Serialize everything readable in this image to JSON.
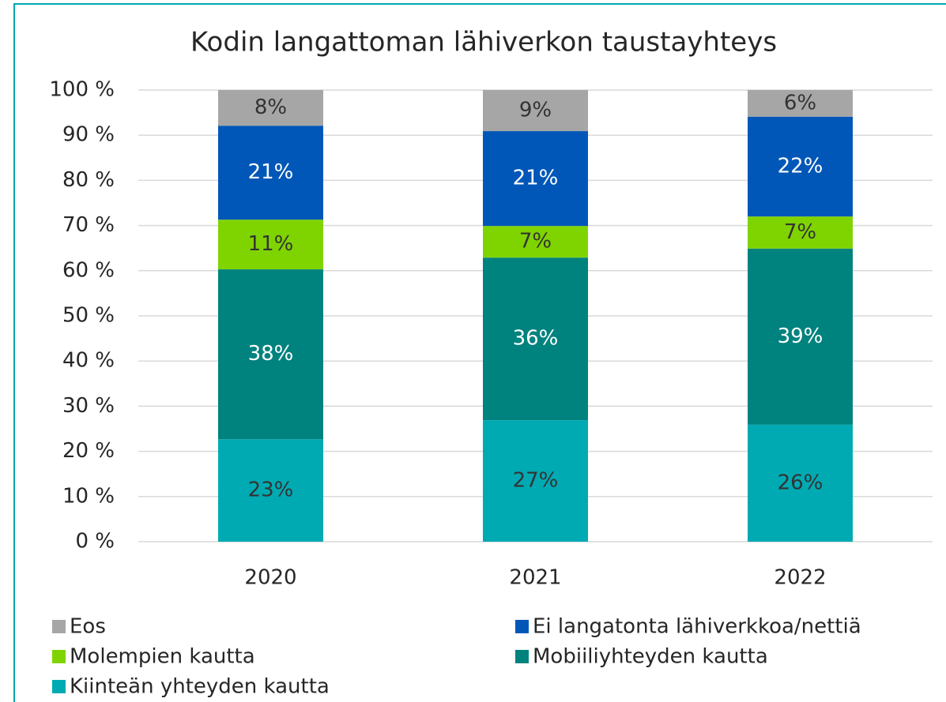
{
  "chart_data": {
    "type": "stacked_bar",
    "title": "Kodin langattoman lähiverkon taustayhteys",
    "categories": [
      "2020",
      "2021",
      "2022"
    ],
    "series": [
      {
        "name": "Kiinteän yhteyden kautta",
        "color": "#00aab3",
        "label_color": "#333333",
        "values": [
          22.7,
          26.9,
          25.9
        ],
        "value_labels": [
          "23%",
          "27%",
          "26%"
        ]
      },
      {
        "name": "Mobiiliyhteyden kautta",
        "color": "#00827e",
        "label_color": "#ffffff",
        "values": [
          37.6,
          36.0,
          39.0
        ],
        "value_labels": [
          "38%",
          "36%",
          "39%"
        ]
      },
      {
        "name": "Molempien kautta",
        "color": "#7fd400",
        "label_color": "#333333",
        "values": [
          11.0,
          7.0,
          7.1
        ],
        "value_labels": [
          "11%",
          "7%",
          "7%"
        ]
      },
      {
        "name": "Ei langatonta lähiverkkoa/nettiä",
        "color": "#0057b8",
        "label_color": "#ffffff",
        "values": [
          20.8,
          21.0,
          22.1
        ],
        "value_labels": [
          "21%",
          "21%",
          "22%"
        ]
      },
      {
        "name": "Eos",
        "color": "#a6a6a6",
        "label_color": "#333333",
        "values": [
          7.9,
          9.1,
          5.9
        ],
        "value_labels": [
          "8%",
          "9%",
          "6%"
        ]
      }
    ],
    "ylim": [
      0,
      100
    ],
    "yticks": [
      {
        "value": 0,
        "label": "0 %"
      },
      {
        "value": 10,
        "label": "10 %"
      },
      {
        "value": 20,
        "label": "20 %"
      },
      {
        "value": 30,
        "label": "30 %"
      },
      {
        "value": 40,
        "label": "40 %"
      },
      {
        "value": 50,
        "label": "50 %"
      },
      {
        "value": 60,
        "label": "60 %"
      },
      {
        "value": 70,
        "label": "70 %"
      },
      {
        "value": 80,
        "label": "80 %"
      },
      {
        "value": 90,
        "label": "90 %"
      },
      {
        "value": 100,
        "label": "100 %"
      }
    ],
    "grid": true
  }
}
